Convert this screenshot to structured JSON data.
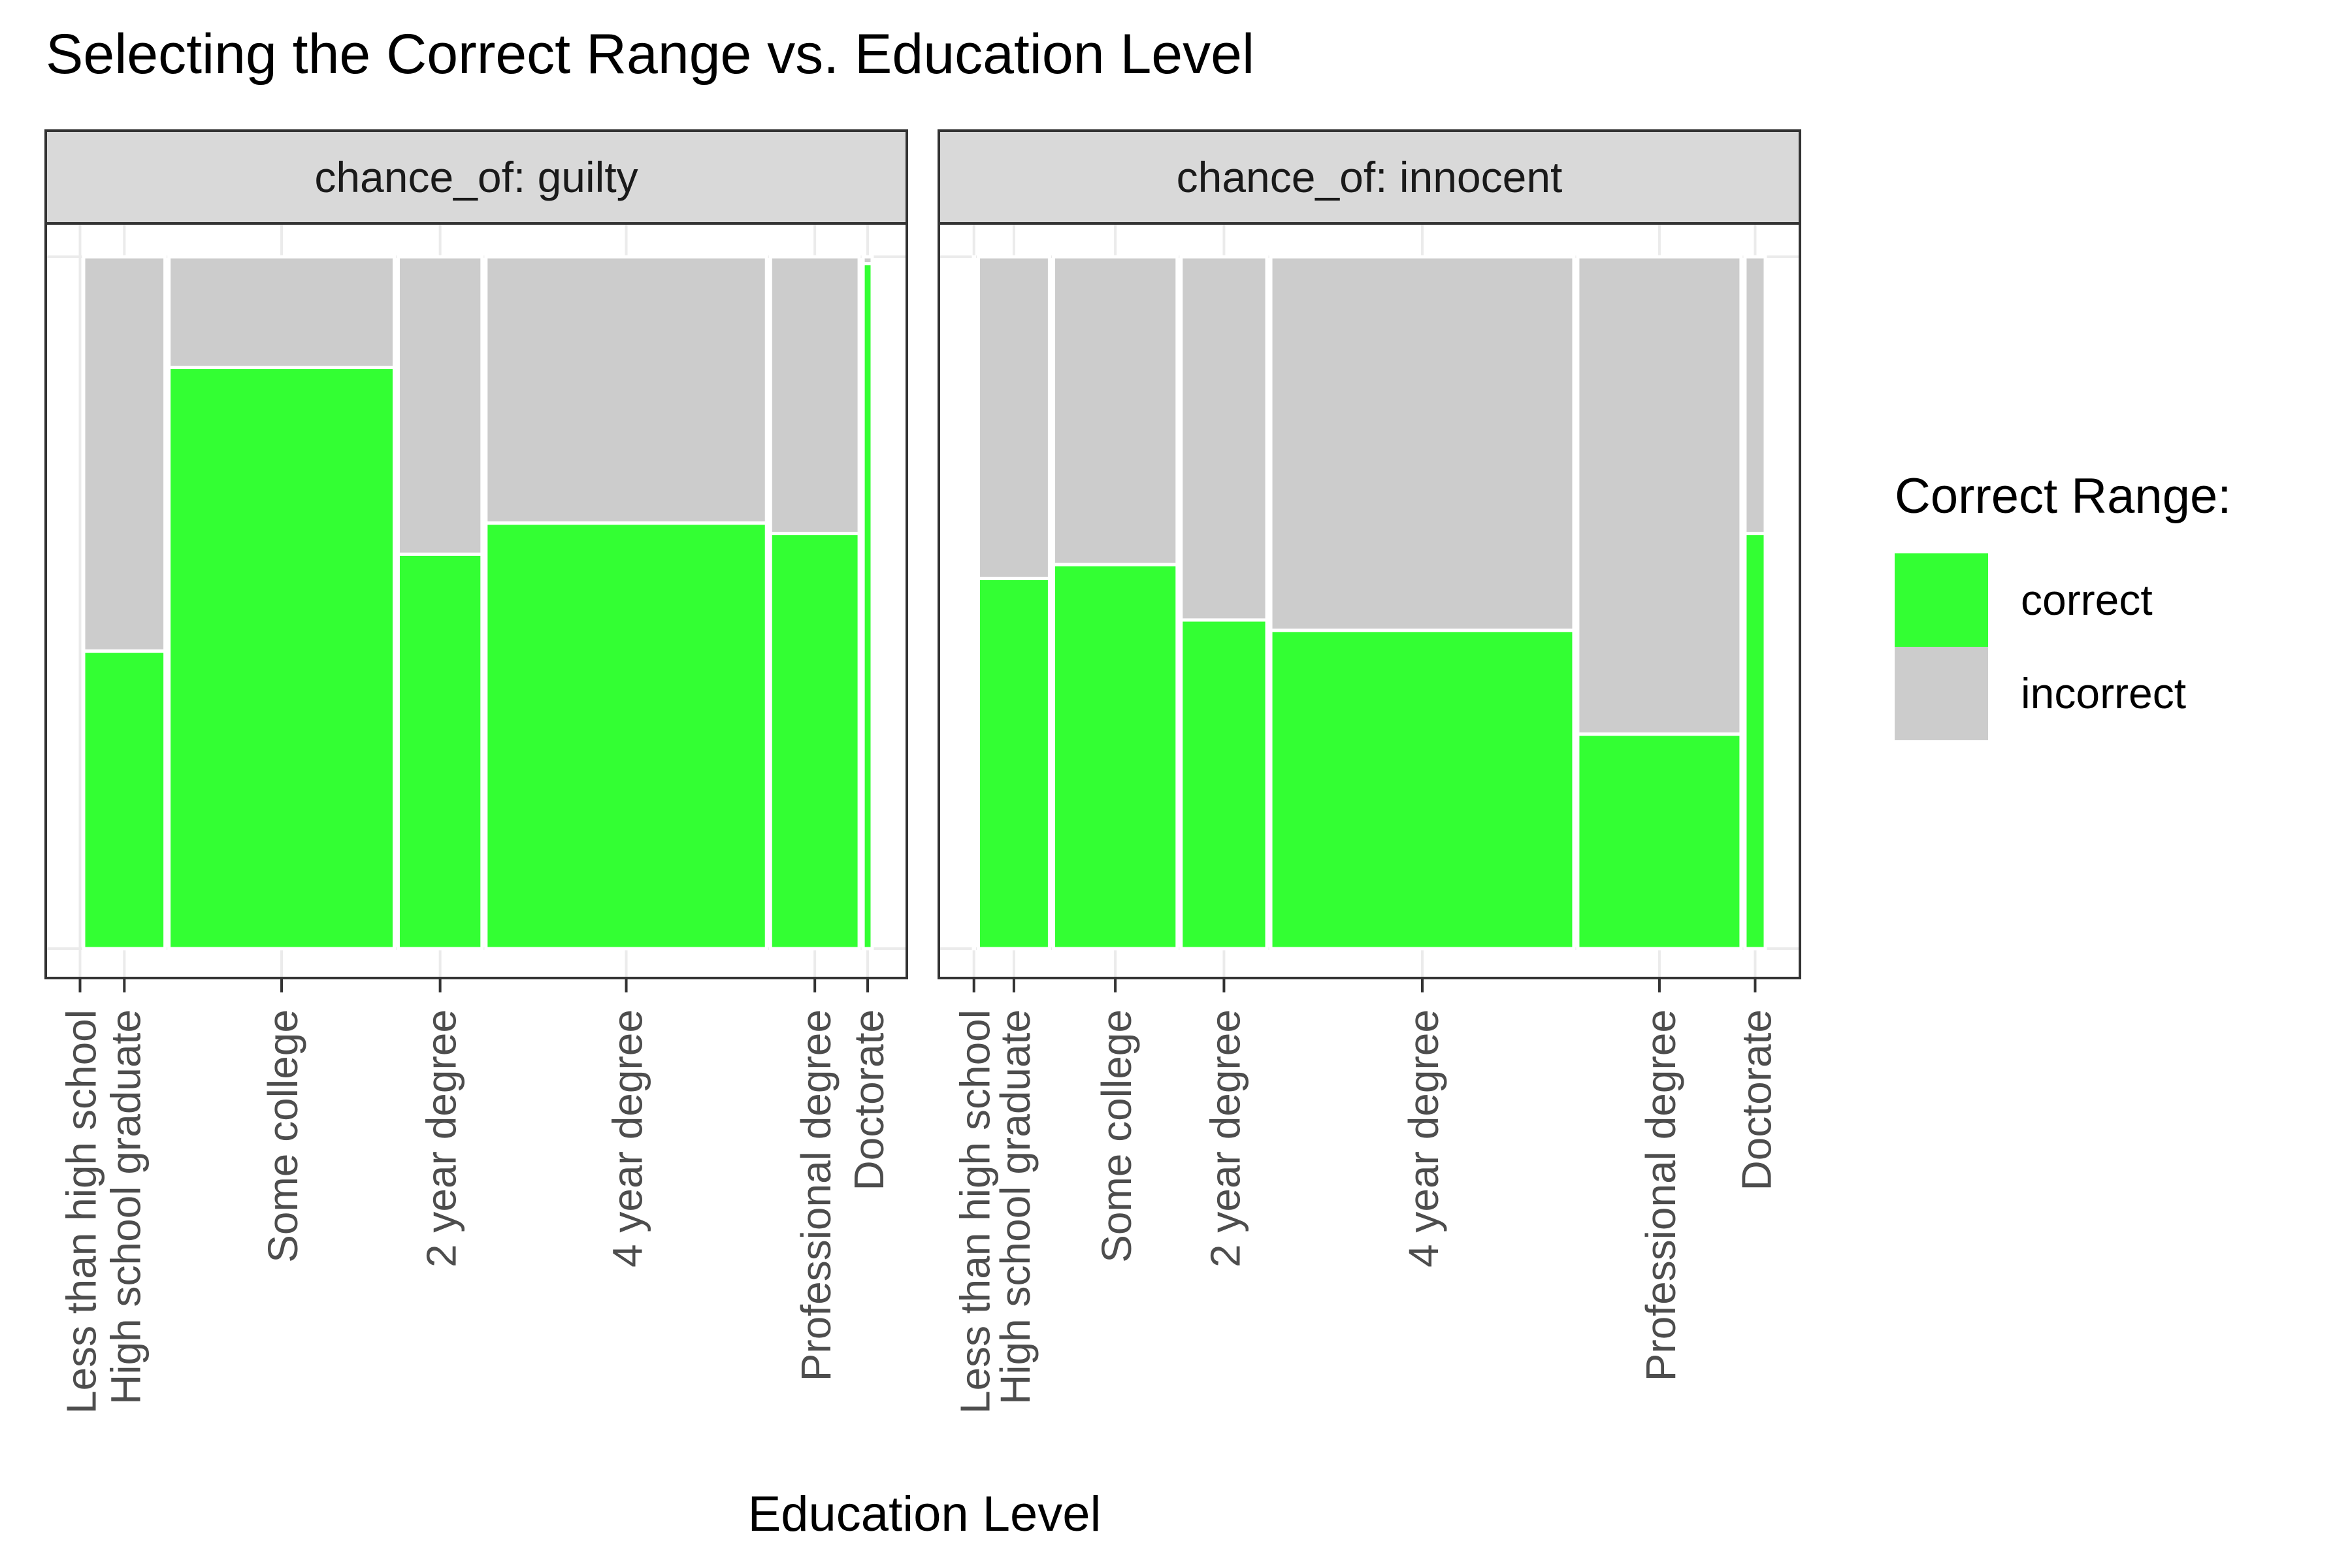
{
  "chart_data": {
    "type": "bar",
    "subtype": "mosaic",
    "title": "Selecting the Correct Range vs. Education Level",
    "xlabel": "Education Level",
    "ylabel": "",
    "facet_variable": "chance_of",
    "legend": {
      "title": "Correct Range:",
      "position": "right",
      "entries": [
        {
          "label": "correct",
          "color": "#33ff33"
        },
        {
          "label": "incorrect",
          "color": "#cccccc"
        }
      ]
    },
    "ylim": [
      0,
      1
    ],
    "y_axis_tick_labels": false,
    "grid": true,
    "categories": [
      "Less than high school",
      "High school graduate",
      "Some college",
      "2 year degree",
      "4 year degree",
      "Professional degree",
      "Doctorate"
    ],
    "panels": [
      {
        "strip": "chance_of: guilty",
        "widths": [
          0.004,
          0.105,
          0.282,
          0.108,
          0.35,
          0.114,
          0.016
        ],
        "correct_share": [
          0.0,
          0.43,
          0.84,
          0.57,
          0.615,
          0.6,
          0.99
        ]
      },
      {
        "strip": "chance_of: innocent",
        "widths": [
          0.006,
          0.093,
          0.158,
          0.111,
          0.38,
          0.207,
          0.03
        ],
        "correct_share": [
          0.0,
          0.535,
          0.555,
          0.475,
          0.46,
          0.31,
          0.6
        ]
      }
    ]
  },
  "colors": {
    "correct": "#33ff33",
    "incorrect": "#cccccc",
    "strip_bg": "#d9d9d9",
    "panel_border": "#333333",
    "grid": "#ebebeb"
  }
}
